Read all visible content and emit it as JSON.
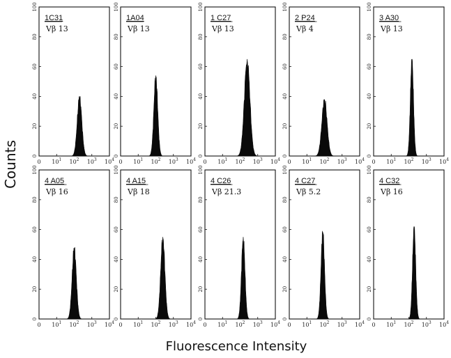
{
  "chart_data": {
    "type": "histogram",
    "xlabel": "Fluorescence Intensity",
    "ylabel": "Counts",
    "x_scale": "log",
    "xlim": [
      1,
      10000
    ],
    "ylim": [
      0,
      100
    ],
    "x_ticks": [
      "0",
      "10",
      "10",
      "10",
      "10"
    ],
    "x_tick_exp": [
      "",
      "1",
      "2",
      "3",
      "4"
    ],
    "y_ticks": [
      0,
      20,
      40,
      60,
      80,
      100
    ],
    "panels": [
      {
        "clone": "1C31",
        "vbeta": "Vβ 13",
        "peak_x": 200,
        "peak_count": 40,
        "width": 0.13
      },
      {
        "clone": "1A04",
        "vbeta": "Vβ 13",
        "peak_x": 100,
        "peak_count": 54,
        "width": 0.11
      },
      {
        "clone": "1 C27",
        "vbeta": "Vβ 13",
        "peak_x": 250,
        "peak_count": 65,
        "width": 0.16
      },
      {
        "clone": "2 P24",
        "vbeta": "Vβ 4",
        "peak_x": 100,
        "peak_count": 38,
        "width": 0.15
      },
      {
        "clone": "3 A30",
        "vbeta": "Vβ 13",
        "peak_x": 150,
        "peak_count": 65,
        "width": 0.09
      },
      {
        "clone": "4 A05",
        "vbeta": "Vβ 16",
        "peak_x": 100,
        "peak_count": 48,
        "width": 0.12
      },
      {
        "clone": "4 A15",
        "vbeta": "Vβ 18",
        "peak_x": 250,
        "peak_count": 55,
        "width": 0.12
      },
      {
        "clone": "4 C26",
        "vbeta": "Vβ 21.3",
        "peak_x": 150,
        "peak_count": 55,
        "width": 0.1
      },
      {
        "clone": "4 C27",
        "vbeta": "Vβ 5.2",
        "peak_x": 80,
        "peak_count": 59,
        "width": 0.1
      },
      {
        "clone": "4 C32",
        "vbeta": "Vβ 16",
        "peak_x": 200,
        "peak_count": 62,
        "width": 0.09
      }
    ]
  }
}
